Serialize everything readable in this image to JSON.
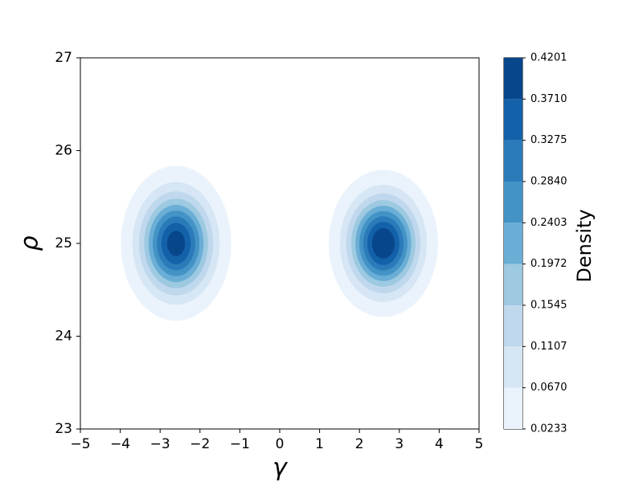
{
  "chart_data": {
    "type": "contour",
    "xlabel": "γ",
    "ylabel": "ρ",
    "colorbar_label": "Density",
    "xlim": [
      -5,
      5
    ],
    "xticks": [
      {
        "value": -5,
        "label": "−5"
      },
      {
        "value": -4,
        "label": "−4"
      },
      {
        "value": -3,
        "label": "−3"
      },
      {
        "value": -2,
        "label": "−2"
      },
      {
        "value": -1,
        "label": "−1"
      },
      0,
      1,
      2,
      3,
      4,
      5
    ],
    "ylim": [
      23,
      27
    ],
    "yticks": [
      23,
      24,
      25,
      26,
      27
    ],
    "levels": [
      0.0233,
      {
        "value": 0.067,
        "label": "0.0670"
      },
      0.1107,
      0.1545,
      0.1972,
      0.2403,
      {
        "value": 0.284,
        "label": "0.2840"
      },
      0.3275,
      {
        "value": 0.371,
        "label": "0.3710"
      },
      0.4201
    ],
    "colors": [
      "#eaf3fb",
      "#d6e6f4",
      "#bfd8ed",
      "#9dc9e1",
      "#6aaed6",
      "#4393c6",
      "#2b7bba",
      "#1361a9",
      "#08468b"
    ],
    "series": [
      {
        "center": [
          -2.6,
          25.0
        ],
        "spread": [
          0.58,
          0.35
        ],
        "peak": 0.4
      },
      {
        "center": [
          2.6,
          25.0
        ],
        "spread": [
          0.57,
          0.33
        ],
        "peak": 0.42
      }
    ]
  }
}
